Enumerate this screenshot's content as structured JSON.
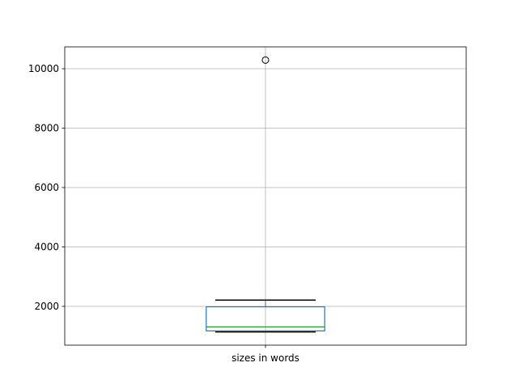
{
  "chart_data": {
    "type": "boxplot",
    "title": "",
    "xlabel": "",
    "ylabel": "",
    "categories": [
      "sizes in words"
    ],
    "boxes": [
      {
        "label": "sizes in words",
        "whisker_low": 1140,
        "q1": 1175,
        "median": 1310,
        "q3": 1985,
        "whisker_high": 2210,
        "outliers": [
          10290
        ]
      }
    ],
    "ylim": [
      694,
      10735
    ],
    "yticks": [
      2000,
      4000,
      6000,
      8000,
      10000
    ],
    "grid": true,
    "colors": {
      "box": "#1f77b4",
      "median": "#2ca02c",
      "whisker": "#000000",
      "grid": "#b0b0b0"
    }
  }
}
